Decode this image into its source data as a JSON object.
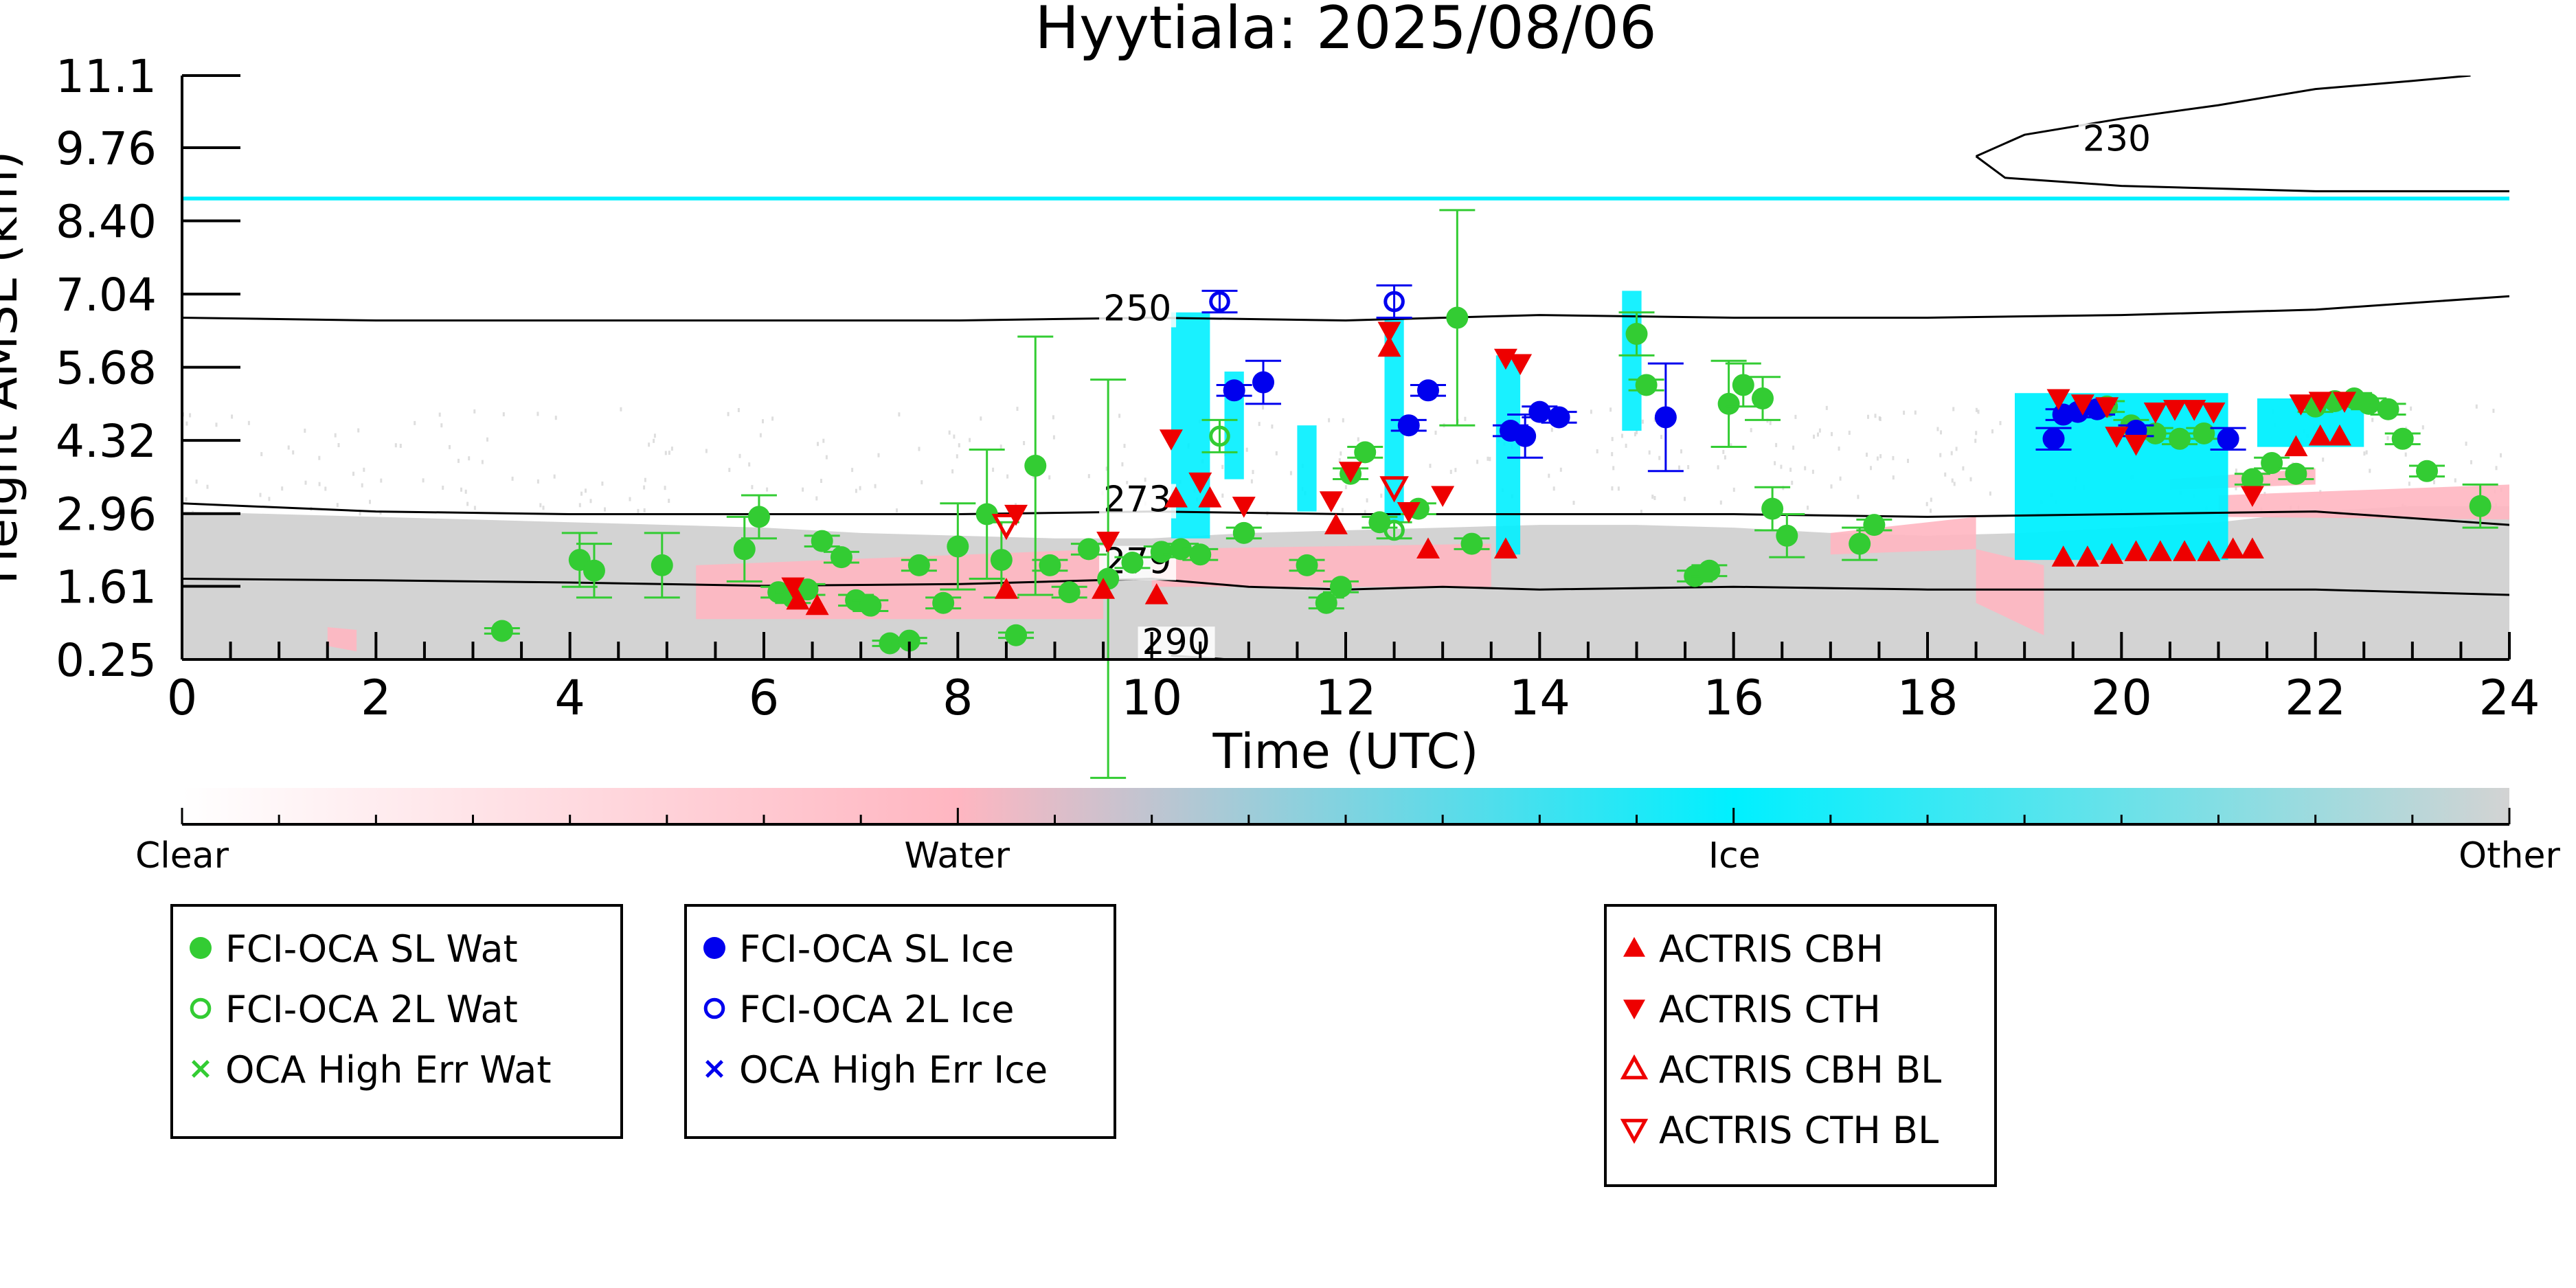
{
  "chart_data": {
    "type": "scatter",
    "title": "Hyytiala: 2025/08/06",
    "xlabel": "Time (UTC)",
    "ylabel": "Height AMSL (km)",
    "xlim": [
      0,
      24
    ],
    "ylim": [
      0.25,
      11.1
    ],
    "x_ticks": [
      "0",
      "2",
      "4",
      "6",
      "8",
      "10",
      "12",
      "14",
      "16",
      "18",
      "20",
      "22",
      "24"
    ],
    "x_tick_values": [
      0,
      2,
      4,
      6,
      8,
      10,
      12,
      14,
      16,
      18,
      20,
      22,
      24
    ],
    "y_ticks": [
      "0.25",
      "1.61",
      "2.96",
      "4.32",
      "5.68",
      "7.04",
      "8.40",
      "9.76",
      "11.1"
    ],
    "y_tick_values": [
      0.25,
      1.61,
      2.96,
      4.32,
      5.68,
      7.04,
      8.4,
      9.76,
      11.1
    ],
    "grid": false,
    "colors": {
      "water_sl": "#33cc33",
      "ice_sl": "#0000ee",
      "actris": "#ee0000",
      "cyan": "#00f0ff",
      "pink": "#ffb6c1",
      "other": "#d3d3d3"
    },
    "colorbar": {
      "labels": [
        "Clear",
        "Water",
        "Ice",
        "Other"
      ],
      "positions": [
        0,
        0.333,
        0.667,
        1.0
      ],
      "colors": [
        "#ffffff",
        "#ffb6c1",
        "#00f0ff",
        "#d3d3d3"
      ]
    },
    "contours": [
      {
        "label": "230",
        "label_x": 19.6,
        "label_y": 9.7,
        "points": [
          [
            18.5,
            9.6
          ],
          [
            19,
            10.0
          ],
          [
            20,
            10.3
          ],
          [
            21,
            10.55
          ],
          [
            22,
            10.85
          ],
          [
            23,
            11.0
          ],
          [
            23.6,
            11.1
          ]
        ]
      },
      {
        "label": "230",
        "label_x": null,
        "label_y": null,
        "points": [
          [
            18.5,
            9.6
          ],
          [
            18.8,
            9.2
          ],
          [
            20,
            9.05
          ],
          [
            22,
            8.95
          ],
          [
            24,
            8.95
          ]
        ]
      },
      {
        "label": "250",
        "label_x": 9.5,
        "label_y": 6.55,
        "points": [
          [
            0,
            6.6
          ],
          [
            2,
            6.55
          ],
          [
            4,
            6.55
          ],
          [
            6,
            6.55
          ],
          [
            8,
            6.55
          ],
          [
            10,
            6.6
          ],
          [
            12,
            6.55
          ],
          [
            14,
            6.65
          ],
          [
            16,
            6.6
          ],
          [
            18,
            6.6
          ],
          [
            20,
            6.65
          ],
          [
            22,
            6.75
          ],
          [
            24,
            7.0
          ]
        ]
      },
      {
        "label": "273",
        "label_x": 9.5,
        "label_y": 3.0,
        "points": [
          [
            0,
            3.15
          ],
          [
            2,
            3.0
          ],
          [
            4,
            2.95
          ],
          [
            6,
            2.95
          ],
          [
            8,
            2.95
          ],
          [
            10,
            3.0
          ],
          [
            12,
            2.95
          ],
          [
            14,
            2.95
          ],
          [
            16,
            2.95
          ],
          [
            18,
            2.9
          ],
          [
            20,
            2.95
          ],
          [
            22,
            3.0
          ],
          [
            24,
            2.75
          ]
        ]
      },
      {
        "label": "279",
        "label_x": 9.5,
        "label_y": 1.85,
        "points": [
          [
            0,
            1.75
          ],
          [
            2,
            1.72
          ],
          [
            4,
            1.68
          ],
          [
            6,
            1.62
          ],
          [
            8,
            1.65
          ],
          [
            9,
            1.7
          ],
          [
            10,
            1.75
          ],
          [
            11,
            1.6
          ],
          [
            12,
            1.55
          ],
          [
            13,
            1.6
          ],
          [
            14,
            1.55
          ],
          [
            16,
            1.6
          ],
          [
            18,
            1.55
          ],
          [
            20,
            1.55
          ],
          [
            22,
            1.55
          ],
          [
            24,
            1.45
          ]
        ]
      },
      {
        "label": "290",
        "label_x": 9.9,
        "label_y": 0.35,
        "points": [
          [
            10.2,
            0.32
          ],
          [
            10.8,
            0.25
          ]
        ]
      }
    ],
    "series": [
      {
        "name": "FCI-OCA SL Wat",
        "marker": "filled-circle",
        "color": "#33cc33",
        "points": [
          [
            3.3,
            0.78,
            0.05
          ],
          [
            4.1,
            2.1,
            0.5
          ],
          [
            4.25,
            1.9,
            0.5
          ],
          [
            4.95,
            2.0,
            0.6
          ],
          [
            5.8,
            2.3,
            0.6
          ],
          [
            5.95,
            2.9,
            0.4
          ],
          [
            6.15,
            1.5,
            0.1
          ],
          [
            6.3,
            1.4,
            0.1
          ],
          [
            6.45,
            1.55,
            0.1
          ],
          [
            6.6,
            2.45,
            0.1
          ],
          [
            6.8,
            2.15,
            0.1
          ],
          [
            6.95,
            1.35,
            0.1
          ],
          [
            7.1,
            1.25,
            0.1
          ],
          [
            7.3,
            0.55,
            0.05
          ],
          [
            7.5,
            0.6,
            0.05
          ],
          [
            7.6,
            2.0,
            0.1
          ],
          [
            7.85,
            1.3,
            0.1
          ],
          [
            8.0,
            2.35,
            0.8
          ],
          [
            8.3,
            2.95,
            1.2
          ],
          [
            8.45,
            2.1,
            0.7
          ],
          [
            8.6,
            0.7,
            0.05
          ],
          [
            8.8,
            3.85,
            2.4
          ],
          [
            8.95,
            2.0,
            0.1
          ],
          [
            9.15,
            1.5,
            0.1
          ],
          [
            9.35,
            2.3,
            0.1
          ],
          [
            9.55,
            1.75,
            3.7
          ],
          [
            9.8,
            2.05,
            0.1
          ],
          [
            10.1,
            2.25,
            0.1
          ],
          [
            10.3,
            2.3,
            0.1
          ],
          [
            10.5,
            2.2,
            0.1
          ],
          [
            10.95,
            2.6,
            0.1
          ],
          [
            11.6,
            2.0,
            0.1
          ],
          [
            11.8,
            1.3,
            0.1
          ],
          [
            11.95,
            1.6,
            0.1
          ],
          [
            12.05,
            3.7,
            0.1
          ],
          [
            12.2,
            4.1,
            0.1
          ],
          [
            12.35,
            2.8,
            0.1
          ],
          [
            12.75,
            3.05,
            0.1
          ],
          [
            13.15,
            6.6,
            2.0
          ],
          [
            13.3,
            2.4,
            0.1
          ],
          [
            15.0,
            6.3,
            0.4
          ],
          [
            15.1,
            5.35,
            0.1
          ],
          [
            15.6,
            1.8,
            0.1
          ],
          [
            15.75,
            1.9,
            0.1
          ],
          [
            15.95,
            5.0,
            0.8
          ],
          [
            16.1,
            5.35,
            0.4
          ],
          [
            16.3,
            5.1,
            0.4
          ],
          [
            16.4,
            3.05,
            0.4
          ],
          [
            16.55,
            2.55,
            0.4
          ],
          [
            17.3,
            2.4,
            0.3
          ],
          [
            17.45,
            2.75,
            0.1
          ],
          [
            19.85,
            4.95,
            0.1
          ],
          [
            20.1,
            4.6,
            0.1
          ],
          [
            20.35,
            4.45,
            0.1
          ],
          [
            20.6,
            4.35,
            0.1
          ],
          [
            20.85,
            4.45,
            0.1
          ],
          [
            21.35,
            3.6,
            0.1
          ],
          [
            21.55,
            3.9,
            0.1
          ],
          [
            21.8,
            3.7,
            0.1
          ],
          [
            22.0,
            4.95,
            0.1
          ],
          [
            22.2,
            5.05,
            0.1
          ],
          [
            22.4,
            5.1,
            0.1
          ],
          [
            22.55,
            5.0,
            0.1
          ],
          [
            22.75,
            4.9,
            0.1
          ],
          [
            22.9,
            4.35,
            0.1
          ],
          [
            23.15,
            3.75,
            0.1
          ],
          [
            23.7,
            3.1,
            0.4
          ]
        ]
      },
      {
        "name": "FCI-OCA 2L Wat",
        "marker": "open-circle",
        "color": "#33cc33",
        "points": [
          [
            10.7,
            4.4,
            0.3
          ],
          [
            12.5,
            2.65,
            0.15
          ]
        ]
      },
      {
        "name": "OCA High Err Wat",
        "marker": "x",
        "color": "#33cc33",
        "points": []
      },
      {
        "name": "FCI-OCA SL Ice",
        "marker": "filled-circle",
        "color": "#0000ee",
        "points": [
          [
            10.85,
            5.25,
            0.1
          ],
          [
            11.15,
            5.4,
            0.4
          ],
          [
            12.65,
            4.6,
            0.1
          ],
          [
            12.85,
            5.25,
            0.1
          ],
          [
            13.7,
            4.5,
            0.1
          ],
          [
            13.85,
            4.4,
            0.4
          ],
          [
            14.0,
            4.85,
            0.1
          ],
          [
            14.2,
            4.75,
            0.1
          ],
          [
            15.3,
            4.75,
            1.0
          ],
          [
            19.3,
            4.35,
            0.2
          ],
          [
            19.4,
            4.8,
            0.1
          ],
          [
            19.55,
            4.85,
            0.1
          ],
          [
            19.75,
            4.9,
            0.1
          ],
          [
            20.15,
            4.5,
            0.1
          ],
          [
            21.1,
            4.35,
            0.2
          ]
        ]
      },
      {
        "name": "FCI-OCA 2L Ice",
        "marker": "open-circle",
        "color": "#0000ee",
        "points": [
          [
            10.7,
            6.9,
            0.2
          ],
          [
            12.5,
            6.9,
            0.3
          ]
        ]
      },
      {
        "name": "OCA High Err Ice",
        "marker": "x",
        "color": "#0000ee",
        "points": []
      },
      {
        "name": "ACTRIS CBH",
        "marker": "triangle-up",
        "color": "#ee0000",
        "points": [
          [
            6.35,
            1.35
          ],
          [
            6.55,
            1.25
          ],
          [
            8.5,
            1.55
          ],
          [
            9.5,
            1.55
          ],
          [
            10.05,
            1.45
          ],
          [
            10.25,
            3.25
          ],
          [
            10.6,
            3.25
          ],
          [
            11.9,
            2.75
          ],
          [
            12.45,
            6.05
          ],
          [
            12.85,
            2.3
          ],
          [
            13.65,
            2.3
          ],
          [
            19.4,
            2.15
          ],
          [
            19.65,
            2.15
          ],
          [
            19.9,
            2.2
          ],
          [
            20.15,
            2.25
          ],
          [
            20.4,
            2.25
          ],
          [
            20.65,
            2.25
          ],
          [
            20.9,
            2.25
          ],
          [
            21.15,
            2.3
          ],
          [
            21.35,
            2.3
          ],
          [
            21.8,
            4.2
          ],
          [
            22.05,
            4.4
          ],
          [
            22.25,
            4.4
          ]
        ]
      },
      {
        "name": "ACTRIS CTH",
        "marker": "triangle-down",
        "color": "#ee0000",
        "points": [
          [
            6.3,
            1.6
          ],
          [
            8.6,
            2.95
          ],
          [
            9.55,
            2.45
          ],
          [
            10.2,
            4.35
          ],
          [
            10.5,
            3.55
          ],
          [
            10.95,
            3.1
          ],
          [
            11.85,
            3.2
          ],
          [
            12.05,
            3.75
          ],
          [
            12.45,
            6.35
          ],
          [
            12.65,
            3.0
          ],
          [
            13.0,
            3.3
          ],
          [
            13.65,
            5.85
          ],
          [
            13.8,
            5.75
          ],
          [
            19.35,
            5.1
          ],
          [
            19.6,
            5.0
          ],
          [
            19.85,
            4.95
          ],
          [
            19.95,
            4.4
          ],
          [
            20.15,
            4.25
          ],
          [
            20.35,
            4.85
          ],
          [
            20.55,
            4.9
          ],
          [
            20.75,
            4.9
          ],
          [
            20.95,
            4.85
          ],
          [
            21.35,
            3.3
          ],
          [
            21.85,
            5.0
          ],
          [
            22.05,
            5.05
          ],
          [
            22.3,
            5.05
          ]
        ]
      },
      {
        "name": "ACTRIS CBH BL",
        "marker": "open-triangle-up",
        "color": "#ee0000",
        "points": []
      },
      {
        "name": "ACTRIS CTH BL",
        "marker": "open-triangle-down",
        "color": "#ee0000",
        "points": [
          [
            12.5,
            3.45
          ],
          [
            8.5,
            2.75
          ]
        ]
      }
    ]
  },
  "legend_groups": [
    {
      "entries": [
        {
          "label": "FCI-OCA SL Wat",
          "marker": "filled-circle",
          "color": "#33cc33"
        },
        {
          "label": "FCI-OCA 2L Wat",
          "marker": "open-circle",
          "color": "#33cc33"
        },
        {
          "label": "OCA High Err Wat",
          "marker": "x",
          "color": "#33cc33"
        }
      ]
    },
    {
      "entries": [
        {
          "label": "FCI-OCA SL Ice",
          "marker": "filled-circle",
          "color": "#0000ee"
        },
        {
          "label": "FCI-OCA 2L Ice",
          "marker": "open-circle",
          "color": "#0000ee"
        },
        {
          "label": "OCA High Err Ice",
          "marker": "x",
          "color": "#0000ee"
        }
      ]
    },
    {
      "entries": [
        {
          "label": "ACTRIS CBH",
          "marker": "triangle-up",
          "color": "#ee0000"
        },
        {
          "label": "ACTRIS CTH",
          "marker": "triangle-down",
          "color": "#ee0000"
        },
        {
          "label": "ACTRIS CBH BL",
          "marker": "open-triangle-up",
          "color": "#ee0000"
        },
        {
          "label": "ACTRIS CTH BL",
          "marker": "open-triangle-down",
          "color": "#ee0000"
        }
      ]
    }
  ]
}
